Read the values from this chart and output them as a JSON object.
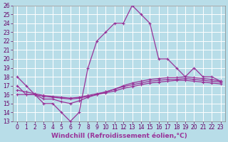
{
  "xlabel": "Windchill (Refroidissement éolien,°C)",
  "x": [
    0,
    1,
    2,
    3,
    4,
    5,
    6,
    7,
    8,
    9,
    10,
    11,
    12,
    13,
    14,
    15,
    16,
    17,
    18,
    19,
    20,
    21,
    22,
    23
  ],
  "line1": [
    18,
    17,
    16,
    15,
    15,
    14,
    13,
    14,
    19,
    22,
    23,
    24,
    24,
    26,
    25,
    24,
    20,
    20,
    19,
    18,
    19,
    18,
    18,
    17.5
  ],
  "line2": [
    17,
    16,
    16,
    15.5,
    15.5,
    15.2,
    15.0,
    15.3,
    15.7,
    16.0,
    16.3,
    16.6,
    17.0,
    17.3,
    17.5,
    17.7,
    17.8,
    17.9,
    17.9,
    18.0,
    17.9,
    17.8,
    17.7,
    17.5
  ],
  "line3": [
    16.5,
    16.3,
    16.1,
    15.9,
    15.8,
    15.7,
    15.6,
    15.7,
    15.9,
    16.1,
    16.3,
    16.6,
    16.9,
    17.1,
    17.3,
    17.5,
    17.6,
    17.7,
    17.7,
    17.8,
    17.7,
    17.6,
    17.5,
    17.4
  ],
  "line4": [
    16,
    16,
    16,
    15.8,
    15.7,
    15.6,
    15.5,
    15.6,
    15.8,
    16.0,
    16.2,
    16.4,
    16.7,
    16.9,
    17.1,
    17.3,
    17.4,
    17.5,
    17.6,
    17.6,
    17.5,
    17.4,
    17.3,
    17.2
  ],
  "color": "#993399",
  "bg_color": "#b8dde8",
  "grid_color": "#ffffff",
  "ylim": [
    13,
    26
  ],
  "xlim": [
    -0.5,
    23.5
  ],
  "yticks": [
    13,
    14,
    15,
    16,
    17,
    18,
    19,
    20,
    21,
    22,
    23,
    24,
    25,
    26
  ],
  "xticks": [
    0,
    1,
    2,
    3,
    4,
    5,
    6,
    7,
    8,
    9,
    10,
    11,
    12,
    13,
    14,
    15,
    16,
    17,
    18,
    19,
    20,
    21,
    22,
    23
  ],
  "xlabel_fontsize": 6.5,
  "tick_fontsize": 5.5
}
